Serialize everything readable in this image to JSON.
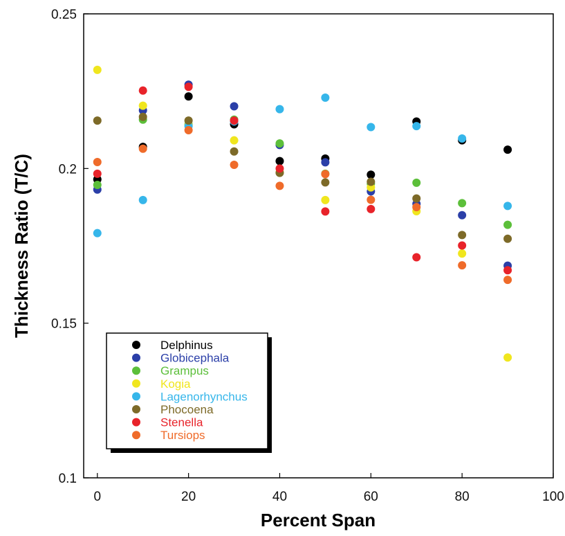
{
  "chart_data": {
    "type": "scatter",
    "title": "",
    "xlabel": "Percent Span",
    "ylabel": "Thickness Ratio (T/C)",
    "xlim": [
      -3,
      100
    ],
    "ylim": [
      0.1,
      0.25
    ],
    "xticks": [
      0,
      20,
      40,
      60,
      80,
      100
    ],
    "xtick_labels": [
      "0",
      "20",
      "40",
      "60",
      "80",
      "100"
    ],
    "yticks": [
      0.1,
      0.15,
      0.2,
      0.25
    ],
    "ytick_labels": [
      "0.1",
      "0.15",
      "0.2",
      "0.25"
    ],
    "grid": false,
    "legend_position": "lower-left",
    "series": [
      {
        "name": "Delphinus",
        "color": "#000000",
        "points": [
          [
            0,
            0.1965
          ],
          [
            10,
            0.207
          ],
          [
            20,
            0.2233
          ],
          [
            30,
            0.2143
          ],
          [
            40,
            0.2024
          ],
          [
            50,
            0.2032
          ],
          [
            60,
            0.198
          ],
          [
            70,
            0.2152
          ],
          [
            80,
            0.2091
          ],
          [
            90,
            0.2061
          ]
        ]
      },
      {
        "name": "Globicephala",
        "color": "#2b3fa8",
        "points": [
          [
            0,
            0.1932
          ],
          [
            10,
            0.2188
          ],
          [
            20,
            0.2271
          ],
          [
            30,
            0.2201
          ],
          [
            40,
            0.2076
          ],
          [
            50,
            0.202
          ],
          [
            60,
            0.1926
          ],
          [
            70,
            0.1886
          ],
          [
            80,
            0.1849
          ],
          [
            90,
            0.1686
          ]
        ]
      },
      {
        "name": "Grampus",
        "color": "#5cbf3a",
        "points": [
          [
            0,
            0.1947
          ],
          [
            10,
            0.2158
          ],
          [
            20,
            0.2143
          ],
          [
            30,
            0.2158
          ],
          [
            40,
            0.2081
          ],
          [
            50,
            0.1983
          ],
          [
            60,
            0.1951
          ],
          [
            70,
            0.1954
          ],
          [
            80,
            0.1888
          ],
          [
            90,
            0.1818
          ]
        ]
      },
      {
        "name": "Kogia",
        "color": "#f0e61e",
        "points": [
          [
            0,
            0.2319
          ],
          [
            10,
            0.2203
          ],
          [
            20,
            0.214
          ],
          [
            30,
            0.2091
          ],
          [
            40,
            0.1988
          ],
          [
            50,
            0.1898
          ],
          [
            60,
            0.1939
          ],
          [
            70,
            0.1862
          ],
          [
            80,
            0.1725
          ],
          [
            90,
            0.1389
          ]
        ]
      },
      {
        "name": "Lagenorhynchus",
        "color": "#36b6ea",
        "points": [
          [
            0,
            0.1791
          ],
          [
            10,
            0.1898
          ],
          [
            20,
            0.2137
          ],
          [
            30,
            0.2152
          ],
          [
            40,
            0.2192
          ],
          [
            50,
            0.2229
          ],
          [
            60,
            0.2134
          ],
          [
            70,
            0.2137
          ],
          [
            80,
            0.2097
          ],
          [
            90,
            0.1879
          ]
        ]
      },
      {
        "name": "Phocoena",
        "color": "#7d6a28",
        "points": [
          [
            0,
            0.2155
          ],
          [
            10,
            0.2167
          ],
          [
            20,
            0.2155
          ],
          [
            30,
            0.2055
          ],
          [
            40,
            0.1986
          ],
          [
            50,
            0.1955
          ],
          [
            60,
            0.1957
          ],
          [
            70,
            0.1903
          ],
          [
            80,
            0.1785
          ],
          [
            90,
            0.1773
          ]
        ]
      },
      {
        "name": "Stenella",
        "color": "#e8232a",
        "points": [
          [
            0,
            0.1983
          ],
          [
            10,
            0.2252
          ],
          [
            20,
            0.2264
          ],
          [
            30,
            0.2155
          ],
          [
            40,
            0.2
          ],
          [
            50,
            0.1861
          ],
          [
            60,
            0.1869
          ],
          [
            70,
            0.1713
          ],
          [
            80,
            0.1751
          ],
          [
            90,
            0.1671
          ]
        ]
      },
      {
        "name": "Tursiops",
        "color": "#ef6b2a",
        "points": [
          [
            0,
            0.2021
          ],
          [
            10,
            0.2064
          ],
          [
            20,
            0.2124
          ],
          [
            30,
            0.2012
          ],
          [
            40,
            0.1944
          ],
          [
            50,
            0.1982
          ],
          [
            60,
            0.1899
          ],
          [
            70,
            0.1875
          ],
          [
            80,
            0.1687
          ],
          [
            90,
            0.164
          ]
        ]
      }
    ]
  }
}
